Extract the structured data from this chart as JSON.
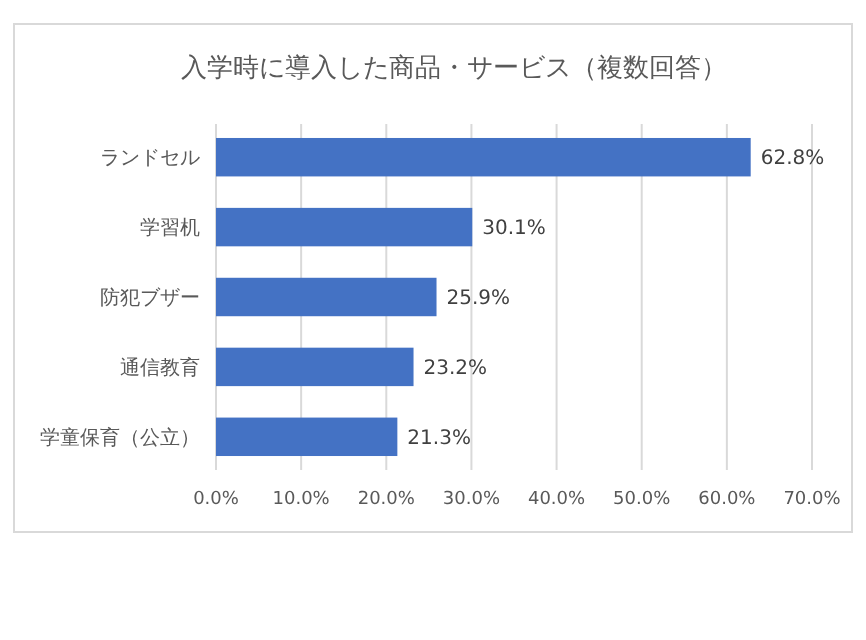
{
  "chart_data": {
    "type": "bar",
    "orientation": "horizontal",
    "title": "入学時に導入した商品・サービス（複数回答）",
    "categories": [
      "ランドセル",
      "学習机",
      "防犯ブザー",
      "通信教育",
      "学童保育（公立）"
    ],
    "values": [
      62.8,
      30.1,
      25.9,
      23.2,
      21.3
    ],
    "value_labels": [
      "62.8%",
      "30.1%",
      "25.9%",
      "23.2%",
      "21.3%"
    ],
    "color": "#4472c4",
    "xlim": [
      0,
      70
    ],
    "xticks": [
      {
        "value": 0,
        "label": "0.0%"
      },
      {
        "value": 10,
        "label": "10.0%"
      },
      {
        "value": 20,
        "label": "20.0%"
      },
      {
        "value": 30,
        "label": "30.0%"
      },
      {
        "value": 40,
        "label": "40.0%"
      },
      {
        "value": 50,
        "label": "50.0%"
      },
      {
        "value": 60,
        "label": "60.0%"
      },
      {
        "value": 70,
        "label": "70.0%"
      }
    ],
    "grid": "x"
  }
}
